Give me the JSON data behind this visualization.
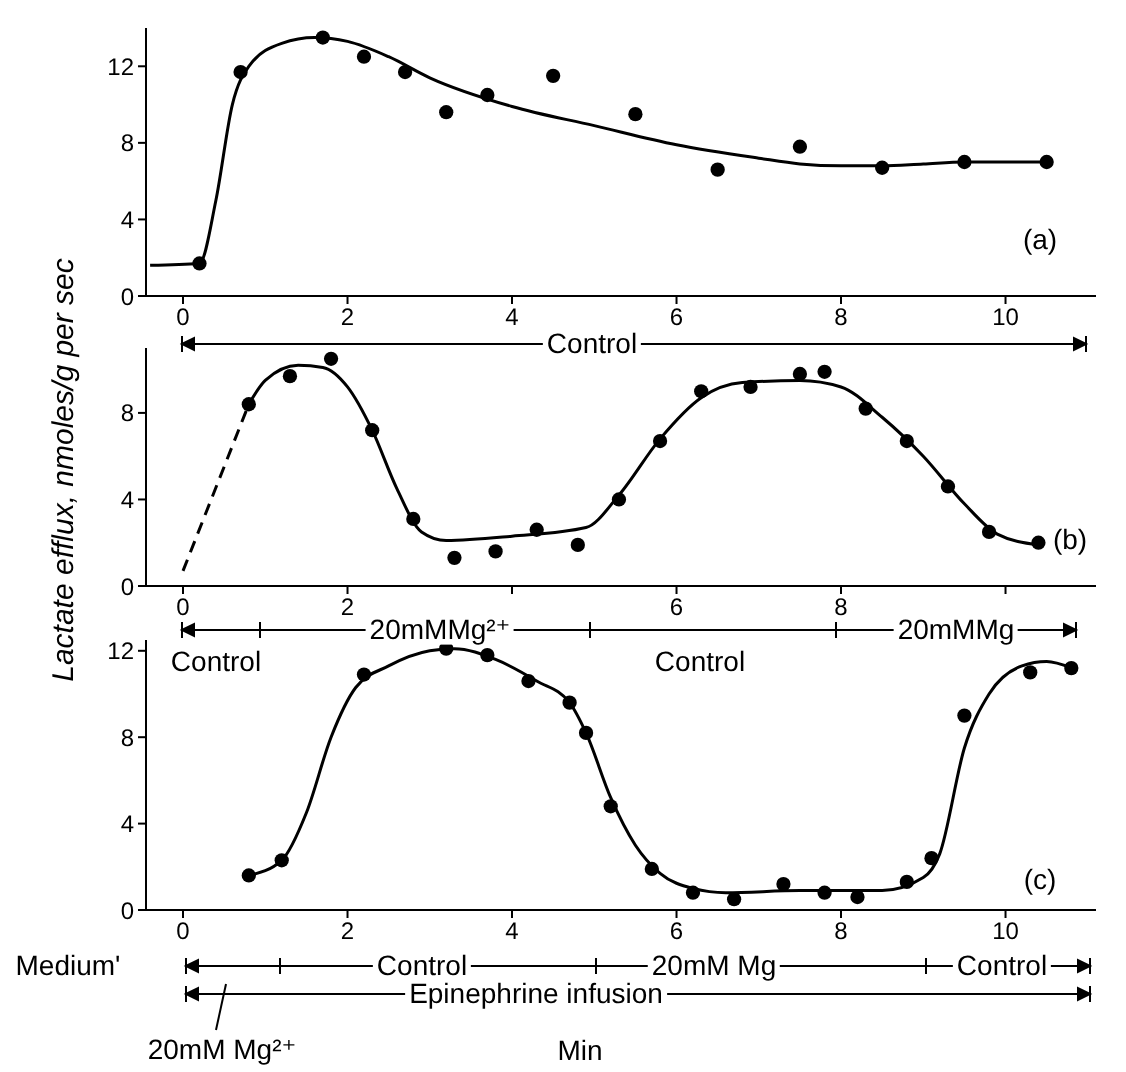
{
  "chart_data": [
    {
      "type": "scatter",
      "xlim": [
        -0.45,
        11.1
      ],
      "ylim": [
        0,
        14
      ],
      "xticks": [
        0,
        2,
        4,
        6,
        8,
        10
      ],
      "yticks": [
        0,
        4,
        8,
        12
      ],
      "marker": "circle",
      "annotations": [
        "(a)",
        "Control"
      ],
      "series": [
        {
          "type": "scatter",
          "color": "#000000",
          "x": [
            0.2,
            0.7,
            1.7,
            2.2,
            2.7,
            3.2,
            3.7,
            4.5,
            5.5,
            6.5,
            7.5,
            8.5,
            9.5,
            10.5
          ],
          "values": [
            1.7,
            11.7,
            13.5,
            12.5,
            11.7,
            9.6,
            10.5,
            11.5,
            9.5,
            6.6,
            7.8,
            6.7,
            7,
            7
          ]
        },
        {
          "type": "line",
          "marker": "none",
          "color": "#000000",
          "x": [
            -0.4,
            0.2,
            0.4,
            0.6,
            0.8,
            1.2,
            1.6,
            2,
            2.5,
            3,
            4,
            5,
            6,
            7,
            7.5,
            8,
            8.5,
            9,
            9.5,
            10.5
          ],
          "values": [
            1.6,
            1.7,
            5,
            10,
            12,
            13.2,
            13.5,
            13.3,
            12.5,
            11.4,
            9.9,
            8.9,
            7.9,
            7.2,
            6.9,
            6.8,
            6.8,
            6.9,
            7,
            7
          ]
        }
      ]
    },
    {
      "type": "scatter",
      "xlim": [
        -0.45,
        11.1
      ],
      "ylim": [
        0,
        11
      ],
      "xticks": [
        0,
        2,
        {
          "value": 4,
          "label": null
        },
        6,
        8,
        {
          "value": 10,
          "label": null
        }
      ],
      "yticks": [
        0,
        4,
        8
      ],
      "marker": "circle",
      "ylabel": "Lactate efflux, nmoles/g per sec",
      "annotations": [
        "(b)",
        "20mMMg²⁺",
        "20mMMg",
        "Control",
        "Control"
      ],
      "series": [
        {
          "type": "scatter",
          "color": "#000000",
          "x": [
            0.8,
            1.3,
            1.8,
            2.3,
            2.8,
            3.3,
            3.8,
            4.3,
            4.8,
            5.3,
            5.8,
            6.3,
            6.9,
            7.5,
            7.8,
            8.3,
            8.8,
            9.3,
            9.8,
            10.4
          ],
          "values": [
            8.4,
            9.7,
            10.5,
            7.2,
            3.1,
            1.3,
            1.6,
            2.6,
            1.9,
            4,
            6.7,
            9,
            9.2,
            9.8,
            9.9,
            8.2,
            6.7,
            4.6,
            2.5,
            2
          ]
        },
        {
          "type": "line",
          "marker": "none",
          "line_style": "dashed",
          "color": "#000000",
          "x": [
            0,
            0.8
          ],
          "values": [
            0.7,
            8.4
          ]
        },
        {
          "type": "line",
          "marker": "none",
          "color": "#000000",
          "x": [
            0.8,
            1,
            1.4,
            1.7,
            2,
            2.3,
            2.6,
            2.9,
            3.2,
            4,
            4.9,
            5.3,
            5.8,
            6.3,
            6.8,
            7.5,
            8,
            8.5,
            9,
            9.5,
            9.9,
            10.4
          ],
          "values": [
            8.4,
            9.5,
            10.2,
            10.1,
            9.2,
            7.2,
            4.5,
            2.5,
            2.1,
            2.3,
            2.7,
            4.2,
            6.8,
            8.7,
            9.4,
            9.5,
            9.2,
            7.8,
            6,
            3.8,
            2.4,
            1.9
          ]
        }
      ]
    },
    {
      "type": "scatter",
      "xlim": [
        -0.45,
        11.1
      ],
      "ylim": [
        0,
        12.5
      ],
      "xticks": [
        0,
        2,
        4,
        6,
        8,
        10
      ],
      "yticks": [
        0,
        4,
        8,
        12
      ],
      "marker": "circle",
      "xlabel": "Min",
      "annotations": [
        "(c)",
        "Control",
        "20mM Mg",
        "Control",
        "Epinephrine infusion",
        "Medium'",
        "20mM Mg²⁺"
      ],
      "series": [
        {
          "type": "scatter",
          "color": "#000000",
          "x": [
            0.8,
            1.2,
            2.2,
            3.2,
            3.7,
            4.2,
            4.7,
            4.9,
            5.2,
            5.7,
            6.2,
            6.7,
            7.3,
            7.8,
            8.2,
            8.8,
            9.1,
            9.5,
            10.3,
            10.8
          ],
          "values": [
            1.6,
            2.3,
            10.9,
            12.1,
            11.8,
            10.6,
            9.6,
            8.2,
            4.8,
            1.9,
            0.8,
            0.5,
            1.2,
            0.8,
            0.6,
            1.3,
            2.4,
            9,
            11,
            11.2
          ]
        },
        {
          "type": "line",
          "marker": "none",
          "color": "#000000",
          "x": [
            0.8,
            1.2,
            1.5,
            1.8,
            2.1,
            2.5,
            3,
            3.3,
            3.8,
            4.3,
            4.7,
            4.9,
            5.2,
            5.5,
            5.8,
            6.2,
            6.6,
            7.5,
            8.5,
            9,
            9.2,
            9.5,
            9.8,
            10.2,
            10.5,
            10.8
          ],
          "values": [
            1.6,
            2.3,
            4.5,
            8,
            10.3,
            11.3,
            12,
            12.1,
            11.6,
            10.6,
            9.6,
            8.2,
            5.2,
            3,
            1.7,
            1,
            0.8,
            0.9,
            0.9,
            1.5,
            2.6,
            7.5,
            10,
            11.3,
            11.5,
            11.2
          ]
        }
      ]
    }
  ]
}
